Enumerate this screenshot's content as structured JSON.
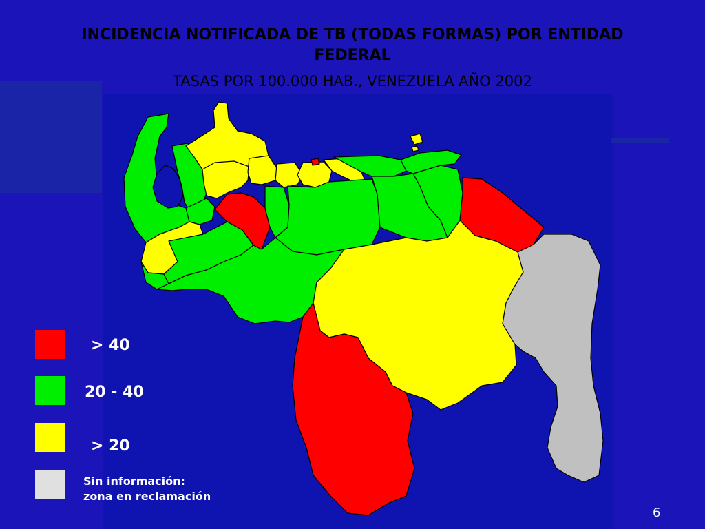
{
  "slide": {
    "title": "INCIDENCIA NOTIFICADA DE TB (TODAS FORMAS) POR ENTIDAD FEDERAL",
    "subtitle": "TASAS POR 100.000 HAB., VENEZUELA AÑO 2002",
    "page_number": "6"
  },
  "legend": {
    "items": [
      {
        "label": "> 40",
        "color": "#ff0000"
      },
      {
        "label": "20 - 40",
        "color": "#00ee00"
      },
      {
        "label": "> 20",
        "color": "#ffff00"
      },
      {
        "label": "Sin información:",
        "label2": "zona en reclamación",
        "color": "#e0e0e0"
      }
    ]
  },
  "colors": {
    "background": "#1b14b8",
    "water": "#0f14b0",
    "high": "#ff0000",
    "medium": "#00ee00",
    "low": "#ffff00",
    "no_data": "#c0c0c0"
  }
}
